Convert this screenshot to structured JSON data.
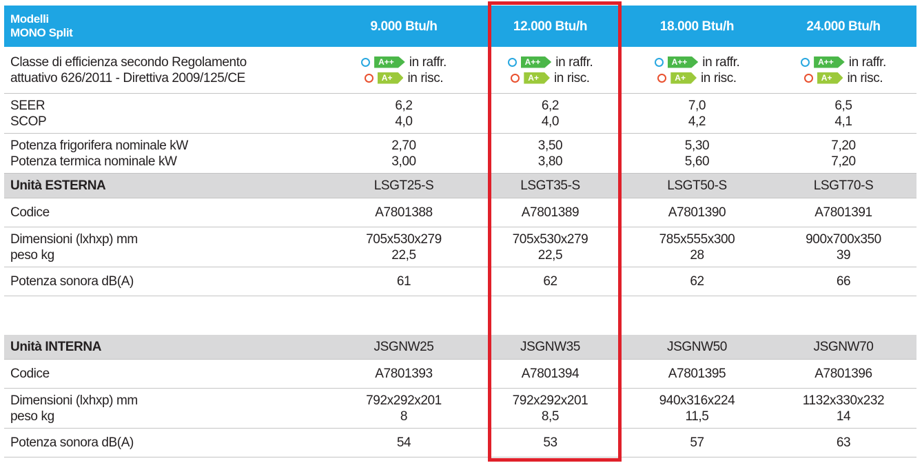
{
  "header": {
    "label": [
      "Modelli",
      "MONO Split"
    ],
    "columns": [
      "9.000 Btu/h",
      "12.000 Btu/h",
      "18.000 Btu/h",
      "24.000 Btu/h"
    ]
  },
  "efficiency": {
    "label": [
      "Classe di efficienza secondo Regolamento",
      "attuativo 626/2011 - Direttiva 2009/125/CE"
    ],
    "cells": [
      {
        "cool": {
          "badge": "A++",
          "text": "in raffr."
        },
        "heat": {
          "badge": "A+",
          "text": "in risc."
        }
      },
      {
        "cool": {
          "badge": "A++",
          "text": "in raffr."
        },
        "heat": {
          "badge": "A+",
          "text": "in risc."
        }
      },
      {
        "cool": {
          "badge": "A++",
          "text": "in raffr."
        },
        "heat": {
          "badge": "A+",
          "text": "in risc."
        }
      },
      {
        "cool": {
          "badge": "A++",
          "text": "in raffr."
        },
        "heat": {
          "badge": "A+",
          "text": "in risc."
        }
      }
    ]
  },
  "ratings": [
    {
      "label": [
        "SEER",
        "SCOP"
      ],
      "cells": [
        [
          "6,2",
          "4,0"
        ],
        [
          "6,2",
          "4,0"
        ],
        [
          "7,0",
          "4,2"
        ],
        [
          "6,5",
          "4,1"
        ]
      ]
    },
    {
      "label": [
        "Potenza frigorifera nominale kW",
        "Potenza termica nominale kW"
      ],
      "cells": [
        [
          "2,70",
          "3,00"
        ],
        [
          "3,50",
          "3,80"
        ],
        [
          "5,30",
          "5,60"
        ],
        [
          "7,20",
          "7,20"
        ]
      ]
    }
  ],
  "units": [
    {
      "title": "Unità ESTERNA",
      "models": [
        "LSGT25-S",
        "LSGT35-S",
        "LSGT50-S",
        "LSGT70-S"
      ],
      "rows": [
        {
          "label": [
            "Codice"
          ],
          "cells": [
            [
              "A7801388"
            ],
            [
              "A7801389"
            ],
            [
              "A7801390"
            ],
            [
              "A7801391"
            ]
          ]
        },
        {
          "label": [
            "Dimensioni (lxhxp) mm",
            "peso kg"
          ],
          "cells": [
            [
              "705x530x279",
              "22,5"
            ],
            [
              "705x530x279",
              "22,5"
            ],
            [
              "785x555x300",
              "28"
            ],
            [
              "900x700x350",
              "39"
            ]
          ]
        },
        {
          "label": [
            "Potenza sonora dB(A)"
          ],
          "cells": [
            [
              "61"
            ],
            [
              "62"
            ],
            [
              "62"
            ],
            [
              "66"
            ]
          ]
        }
      ]
    },
    {
      "title": "Unità INTERNA",
      "models": [
        "JSGNW25",
        "JSGNW35",
        "JSGNW50",
        "JSGNW70"
      ],
      "rows": [
        {
          "label": [
            "Codice"
          ],
          "cells": [
            [
              "A7801393"
            ],
            [
              "A7801394"
            ],
            [
              "A7801395"
            ],
            [
              "A7801396"
            ]
          ]
        },
        {
          "label": [
            "Dimensioni (lxhxp) mm",
            "peso kg"
          ],
          "cells": [
            [
              "792x292x201",
              "8"
            ],
            [
              "792x292x201",
              "8,5"
            ],
            [
              "940x316x224",
              "11,5"
            ],
            [
              "1132x330x232",
              "14"
            ]
          ]
        },
        {
          "label": [
            "Potenza sonora dB(A)"
          ],
          "cells": [
            [
              "54"
            ],
            [
              "53"
            ],
            [
              "57"
            ],
            [
              "63"
            ]
          ]
        }
      ]
    }
  ]
}
